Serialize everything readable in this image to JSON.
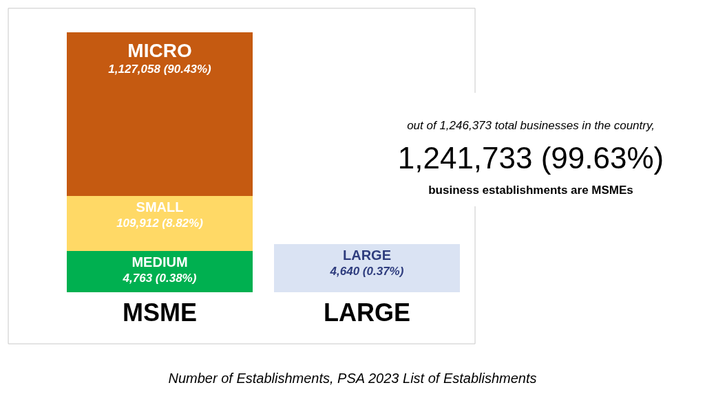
{
  "chart_data": {
    "type": "other",
    "categories": [
      "MSME",
      "LARGE"
    ],
    "series": [
      {
        "name": "MEDIUM",
        "color": "#00b050",
        "values": [
          4763,
          null
        ],
        "value_labels": [
          "4,763 (0.38%)",
          null
        ]
      },
      {
        "name": "SMALL",
        "color": "#ffd966",
        "values": [
          109912,
          null
        ],
        "value_labels": [
          "109,912 (8.82%)",
          null
        ]
      },
      {
        "name": "MICRO",
        "color": "#c55a11",
        "values": [
          1127058,
          null
        ],
        "value_labels": [
          "1,127,058 (90.43%)",
          null
        ]
      },
      {
        "name": "LARGE",
        "color": "#dae3f3",
        "values": [
          null,
          4640
        ],
        "value_labels": [
          null,
          "4,640 (0.37%)"
        ]
      }
    ],
    "annotations": [
      "out of 1,246,373 total businesses in the country,",
      "1,241,733 (99.63%)",
      "business establishments are MSMEs",
      "Number of Establishments, PSA 2023 List of Establishments"
    ]
  }
}
